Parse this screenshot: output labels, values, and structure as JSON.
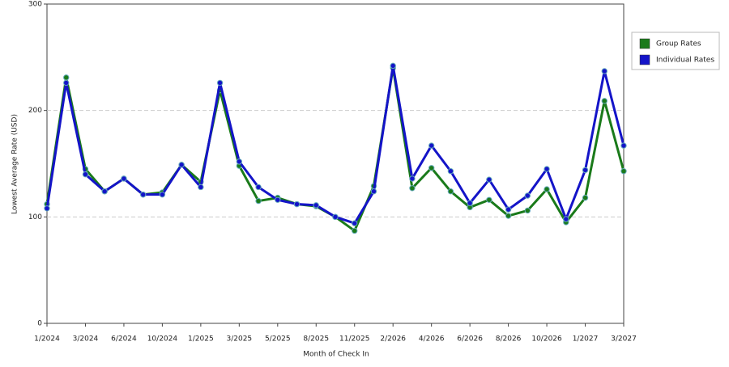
{
  "chart_data": {
    "type": "line",
    "x_label": "Month of Check In",
    "y_label": "Lowest Average Rate (USD)",
    "categories": [
      "1/2024",
      null,
      "3/2024",
      null,
      "6/2024",
      null,
      "10/2024",
      null,
      "1/2025",
      null,
      "3/2025",
      null,
      "5/2025",
      null,
      "8/2025",
      null,
      "11/2025",
      null,
      "2/2026",
      null,
      "4/2026",
      null,
      "6/2026",
      null,
      "8/2026",
      null,
      "10/2026",
      null,
      "1/2027",
      null,
      "3/2027"
    ],
    "series": [
      {
        "name": "Group Rates",
        "color": "#1a7a1a",
        "values": [
          112,
          231,
          145,
          124,
          136,
          121,
          123,
          149,
          133,
          219,
          148,
          115,
          118,
          112,
          110,
          100,
          87,
          129,
          240,
          127,
          146,
          124,
          109,
          116,
          101,
          106,
          126,
          95,
          118,
          209,
          143
        ]
      },
      {
        "name": "Individual Rates",
        "color": "#1414c8",
        "values": [
          108,
          226,
          140,
          124,
          136,
          121,
          121,
          149,
          128,
          226,
          152,
          128,
          116,
          112,
          111,
          100,
          94,
          124,
          242,
          136,
          167,
          143,
          113,
          135,
          107,
          120,
          145,
          98,
          144,
          237,
          167
        ]
      }
    ],
    "ylim": [
      0,
      300
    ],
    "yticks": [
      0,
      100,
      200,
      300
    ],
    "grid": true,
    "legend": "right"
  }
}
